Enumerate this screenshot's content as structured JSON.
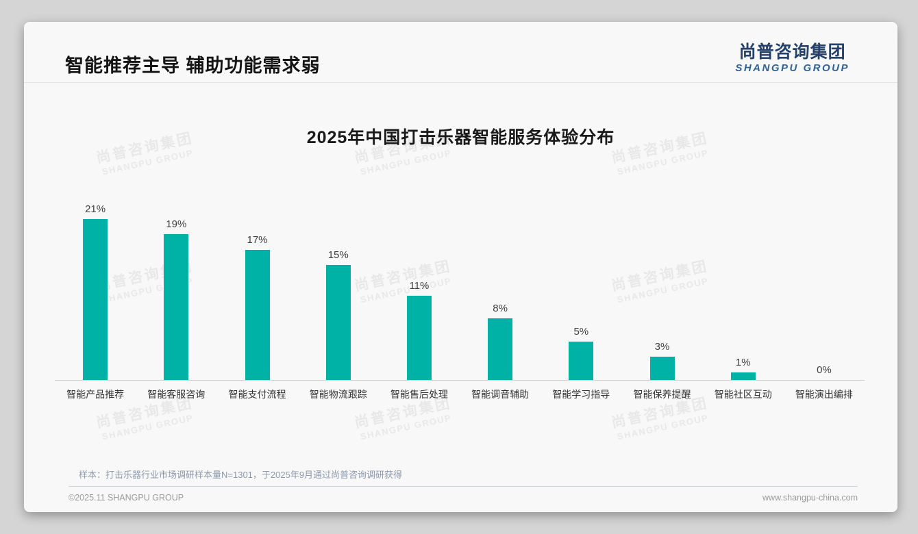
{
  "page": {
    "slide_title": "智能推荐主导 辅助功能需求弱",
    "logo": {
      "cn": "尚普咨询集团",
      "en": "SHANGPU GROUP"
    },
    "footnote": "样本：打击乐器行业市场调研样本量N=1301，于2025年9月通过尚普咨询调研获得",
    "footer_left": "©2025.11 SHANGPU GROUP",
    "footer_right": "www.shangpu-china.com",
    "watermark": {
      "line1": "尚普咨询集团",
      "line2": "SHANGPU GROUP"
    }
  },
  "colors": {
    "bar": "#00b1a6",
    "logo_cn": "#24416b",
    "logo_en": "#2d6399",
    "footnote": "#8c99aa"
  },
  "chart_data": {
    "type": "bar",
    "title": "2025年中国打击乐器智能服务体验分布",
    "categories": [
      "智能产品推荐",
      "智能客服咨询",
      "智能支付流程",
      "智能物流跟踪",
      "智能售后处理",
      "智能调音辅助",
      "智能学习指导",
      "智能保养提醒",
      "智能社区互动",
      "智能演出编排"
    ],
    "values": [
      21,
      19,
      17,
      15,
      11,
      8,
      5,
      3,
      1,
      0
    ],
    "value_suffix": "%",
    "xlabel": "",
    "ylabel": "",
    "ylim": [
      0,
      23
    ],
    "grid": false,
    "legend": "none",
    "data_labels": true
  }
}
